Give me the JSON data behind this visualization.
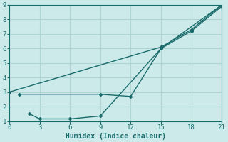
{
  "xlabel": "Humidex (Indice chaleur)",
  "xlim": [
    0,
    21
  ],
  "ylim": [
    1,
    9
  ],
  "xticks": [
    0,
    3,
    6,
    9,
    12,
    15,
    18,
    21
  ],
  "yticks": [
    1,
    2,
    3,
    4,
    5,
    6,
    7,
    8,
    9
  ],
  "bg_color": "#cceaea",
  "grid_color": "#aed4d4",
  "line_color": "#1a6b6b",
  "lines": [
    {
      "x": [
        0,
        15,
        18,
        21
      ],
      "y": [
        3.0,
        6.1,
        7.3,
        9.0
      ]
    },
    {
      "x": [
        1,
        9,
        12,
        15,
        18,
        21
      ],
      "y": [
        2.85,
        2.85,
        2.7,
        6.0,
        7.2,
        8.9
      ]
    },
    {
      "x": [
        2,
        3,
        6,
        9,
        15,
        21
      ],
      "y": [
        1.5,
        1.15,
        1.15,
        1.35,
        6.0,
        9.0
      ]
    }
  ]
}
